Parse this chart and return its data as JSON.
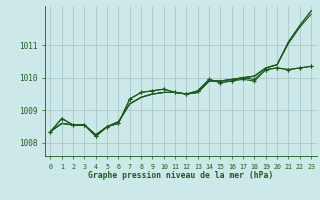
{
  "bg_color": "#cce8e8",
  "grid_color": "#a8c8cc",
  "line_color": "#1a5c1a",
  "marker_color": "#1a5c1a",
  "xlabel": "Graphe pression niveau de la mer (hPa)",
  "xlabel_color": "#1a5c1a",
  "xlim": [
    -0.5,
    23.5
  ],
  "ylim": [
    1007.6,
    1012.2
  ],
  "yticks": [
    1008,
    1009,
    1010,
    1011
  ],
  "xticks": [
    0,
    1,
    2,
    3,
    4,
    5,
    6,
    7,
    8,
    9,
    10,
    11,
    12,
    13,
    14,
    15,
    16,
    17,
    18,
    19,
    20,
    21,
    22,
    23
  ],
  "series_with_markers": [
    [
      1008.35,
      1008.75,
      1008.55,
      1008.55,
      1008.2,
      1008.5,
      1008.6,
      1009.35,
      1009.55,
      1009.6,
      1009.65,
      1009.55,
      1009.5,
      1009.6,
      1009.95,
      1009.85,
      1009.9,
      1009.95,
      1009.9,
      1010.25,
      1010.3,
      1010.25,
      1010.3,
      1010.35
    ],
    [
      1008.35,
      1008.75,
      1008.55,
      1008.55,
      1008.2,
      1008.5,
      1008.6,
      1009.35,
      1009.55,
      1009.6,
      1009.65,
      1009.55,
      1009.5,
      1009.6,
      1009.95,
      1009.85,
      1009.9,
      1010.0,
      1009.95,
      1010.25,
      1010.3,
      1010.25,
      1010.3,
      1010.35
    ]
  ],
  "series_smooth": [
    [
      1008.35,
      1008.6,
      1008.55,
      1008.55,
      1008.25,
      1008.5,
      1008.65,
      1009.2,
      1009.4,
      1009.5,
      1009.55,
      1009.55,
      1009.5,
      1009.55,
      1009.9,
      1009.9,
      1009.95,
      1010.0,
      1010.05,
      1010.3,
      1010.4,
      1011.05,
      1011.55,
      1011.95
    ],
    [
      1008.35,
      1008.6,
      1008.55,
      1008.55,
      1008.25,
      1008.5,
      1008.65,
      1009.2,
      1009.4,
      1009.5,
      1009.55,
      1009.55,
      1009.5,
      1009.55,
      1009.9,
      1009.9,
      1009.95,
      1010.0,
      1010.05,
      1010.3,
      1010.4,
      1011.1,
      1011.6,
      1012.05
    ],
    [
      1008.35,
      1008.6,
      1008.55,
      1008.55,
      1008.25,
      1008.5,
      1008.65,
      1009.2,
      1009.4,
      1009.5,
      1009.55,
      1009.55,
      1009.5,
      1009.55,
      1009.9,
      1009.9,
      1009.95,
      1010.0,
      1010.05,
      1010.3,
      1010.4,
      1011.1,
      1011.6,
      1012.05
    ]
  ]
}
